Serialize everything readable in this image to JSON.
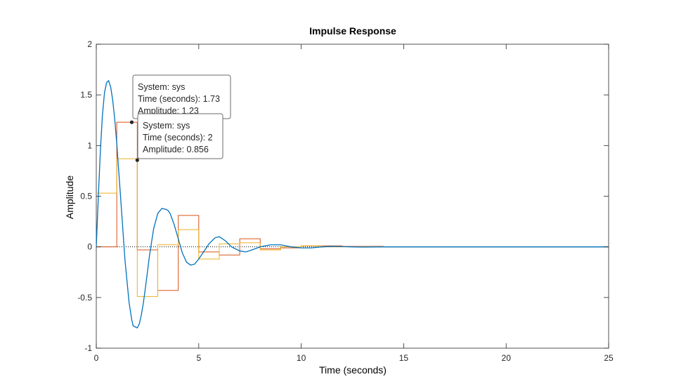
{
  "chart_data": {
    "type": "line",
    "title": "Impulse Response",
    "xlabel": "Time (seconds)",
    "ylabel": "Amplitude",
    "xlim": [
      0,
      25
    ],
    "ylim": [
      -1,
      2
    ],
    "xticks": [
      0,
      5,
      10,
      15,
      20,
      25
    ],
    "xtick_labels": [
      "0",
      "5",
      "10",
      "15",
      "20",
      "25"
    ],
    "yticks": [
      -1,
      -0.5,
      0,
      0.5,
      1,
      1.5,
      2
    ],
    "ytick_labels": [
      "-1",
      "-0.5",
      "0",
      "0.5",
      "1",
      "1.5",
      "2"
    ],
    "grid": false,
    "legend": "none",
    "zero_line": {
      "y": 0,
      "style": "dotted"
    },
    "series": [
      {
        "color": "#0072BD",
        "style": "continuous",
        "x": [
          0,
          0.1,
          0.2,
          0.3,
          0.4,
          0.5,
          0.6,
          0.7,
          0.8,
          0.9,
          1.0,
          1.2,
          1.4,
          1.6,
          1.73,
          1.8,
          2.0,
          2.1,
          2.2,
          2.3,
          2.4,
          2.5,
          2.6,
          2.8,
          3.0,
          3.2,
          3.4,
          3.5,
          3.6,
          3.8,
          4.0,
          4.2,
          4.4,
          4.6,
          4.8,
          5.0,
          5.2,
          5.5,
          5.8,
          6.0,
          6.3,
          6.6,
          7.0,
          7.3,
          7.6,
          8.0,
          8.5,
          9.0,
          9.5,
          10.0,
          10.5,
          11.0,
          11.5,
          12.0,
          12.5,
          13.0,
          14.0,
          16.0,
          20.0,
          25.0
        ],
        "y": [
          0,
          0.5,
          0.95,
          1.3,
          1.52,
          1.62,
          1.64,
          1.58,
          1.45,
          1.26,
          1.02,
          0.45,
          -0.13,
          -0.55,
          -0.72,
          -0.78,
          -0.8,
          -0.76,
          -0.67,
          -0.55,
          -0.4,
          -0.24,
          -0.08,
          0.18,
          0.33,
          0.38,
          0.37,
          0.36,
          0.33,
          0.22,
          0.08,
          -0.06,
          -0.15,
          -0.18,
          -0.17,
          -0.12,
          -0.06,
          0.03,
          0.09,
          0.1,
          0.06,
          0.0,
          -0.04,
          -0.05,
          -0.03,
          0.0,
          0.02,
          0.02,
          0.0,
          -0.01,
          -0.01,
          0.0,
          0.005,
          0.003,
          0.0,
          -0.002,
          0.0,
          0.0,
          0.0,
          0.0
        ]
      },
      {
        "color": "#D95319",
        "style": "stairs",
        "x": [
          0,
          1,
          2,
          3,
          4,
          5,
          6,
          7,
          8,
          9,
          10,
          11,
          12,
          13,
          14,
          25
        ],
        "y": [
          0,
          1.23,
          -0.03,
          -0.43,
          0.31,
          -0.05,
          -0.08,
          0.08,
          -0.02,
          -0.01,
          0.01,
          0.01,
          0.005,
          0.005,
          0.0,
          0.0
        ]
      },
      {
        "color": "#EDB120",
        "style": "stairs",
        "x": [
          0,
          1,
          2,
          3,
          4,
          5,
          6,
          7,
          8,
          9,
          10,
          11,
          12,
          13,
          14,
          25
        ],
        "y": [
          0.53,
          0.87,
          -0.49,
          0.02,
          0.17,
          -0.12,
          0.03,
          0.04,
          -0.03,
          0.0,
          0.01,
          0.0,
          0.0,
          0.0,
          0.0,
          0.0
        ]
      }
    ],
    "annotations": [
      {
        "x": 1.73,
        "y": 1.23,
        "marker_color": "#262626",
        "lines": [
          "System: sys",
          "Time (seconds): 1.73",
          "Amplitude: 1.23"
        ]
      },
      {
        "x": 2,
        "y": 0.856,
        "marker_color": "#262626",
        "lines": [
          "System: sys",
          "Time (seconds): 2",
          "Amplitude: 0.856"
        ]
      }
    ]
  }
}
